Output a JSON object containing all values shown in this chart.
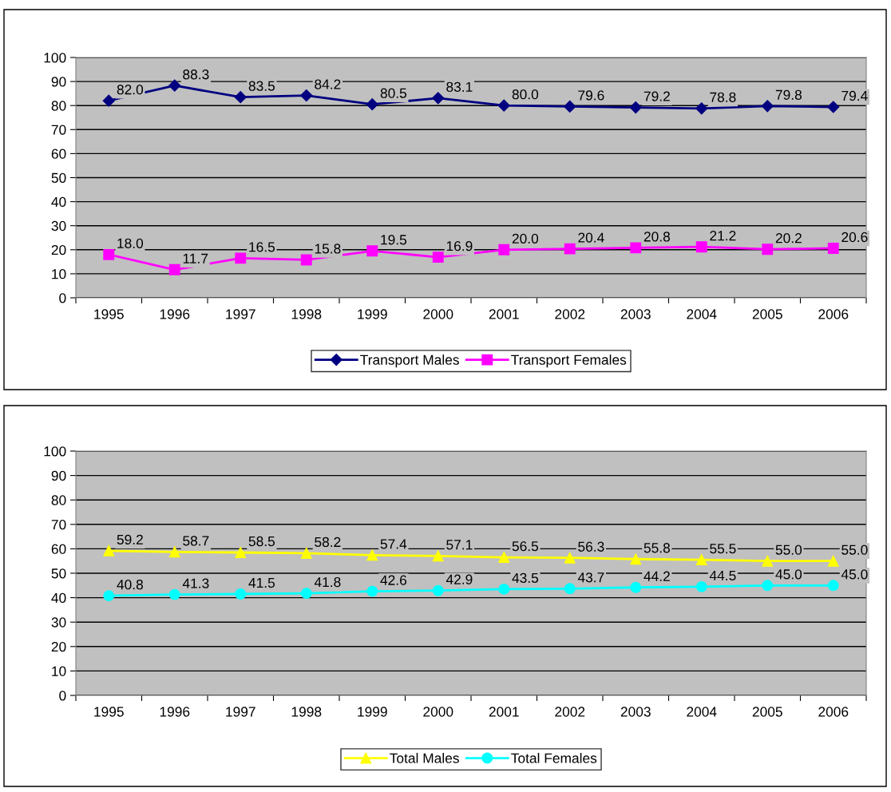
{
  "chart_data": [
    {
      "type": "line",
      "categories": [
        "1995",
        "1996",
        "1997",
        "1998",
        "1999",
        "2000",
        "2001",
        "2002",
        "2003",
        "2004",
        "2005",
        "2006"
      ],
      "ylim": [
        0,
        100
      ],
      "yticks": [
        0,
        10,
        20,
        30,
        40,
        50,
        60,
        70,
        80,
        90,
        100
      ],
      "grid": "y",
      "legend": "bottom",
      "series": [
        {
          "name": "Transport Males",
          "color": "#000080",
          "marker": "diamond",
          "values": [
            82.0,
            88.3,
            83.5,
            84.2,
            80.5,
            83.1,
            80.0,
            79.6,
            79.2,
            78.8,
            79.8,
            79.4
          ],
          "value_labels": [
            "82.0",
            "88.3",
            "83.5",
            "84.2",
            "80.5",
            "83.1",
            "80.0",
            "79.6",
            "79.2",
            "78.8",
            "79.8",
            "79.4"
          ]
        },
        {
          "name": "Transport Females",
          "color": "#ff00ff",
          "marker": "square",
          "values": [
            18.0,
            11.7,
            16.5,
            15.8,
            19.5,
            16.9,
            20.0,
            20.4,
            20.8,
            21.2,
            20.2,
            20.6
          ],
          "value_labels": [
            "18.0",
            "11.7",
            "16.5",
            "15.8",
            "19.5",
            "16.9",
            "20.0",
            "20.4",
            "20.8",
            "21.2",
            "20.2",
            "20.6"
          ]
        }
      ]
    },
    {
      "type": "line",
      "categories": [
        "1995",
        "1996",
        "1997",
        "1998",
        "1999",
        "2000",
        "2001",
        "2002",
        "2003",
        "2004",
        "2005",
        "2006"
      ],
      "ylim": [
        0,
        100
      ],
      "yticks": [
        0,
        10,
        20,
        30,
        40,
        50,
        60,
        70,
        80,
        90,
        100
      ],
      "grid": "y",
      "legend": "bottom",
      "series": [
        {
          "name": "Total Males",
          "color": "#ffff00",
          "marker": "triangle",
          "values": [
            59.2,
            58.7,
            58.5,
            58.2,
            57.4,
            57.1,
            56.5,
            56.3,
            55.8,
            55.5,
            55.0,
            55.0
          ],
          "value_labels": [
            "59.2",
            "58.7",
            "58.5",
            "58.2",
            "57.4",
            "57.1",
            "56.5",
            "56.3",
            "55.8",
            "55.5",
            "55.0",
            "55.0"
          ]
        },
        {
          "name": "Total Females",
          "color": "#00ffff",
          "marker": "circle",
          "values": [
            40.8,
            41.3,
            41.5,
            41.8,
            42.6,
            42.9,
            43.5,
            43.7,
            44.2,
            44.5,
            45.0,
            45.0
          ],
          "value_labels": [
            "40.8",
            "41.3",
            "41.5",
            "41.8",
            "42.6",
            "42.9",
            "43.5",
            "43.7",
            "44.2",
            "44.5",
            "45.0",
            "45.0"
          ]
        }
      ]
    }
  ]
}
